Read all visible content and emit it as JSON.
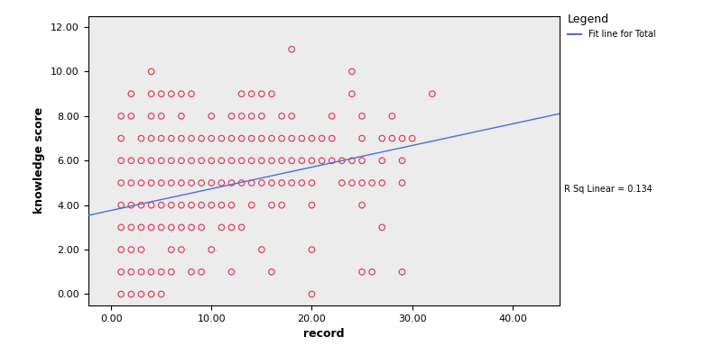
{
  "chart_data": {
    "type": "scatter",
    "x_label": "record",
    "y_label": "knowledge score",
    "legend_title": "Legend",
    "legend": "upper left",
    "annotations": [
      {
        "text": "R Sq Linear = 0.134"
      }
    ],
    "xlim": [
      -2.3,
      44.7
    ],
    "ylim": [
      -0.5,
      12.5
    ],
    "xticks": [
      {
        "value": 0,
        "label": "0.00"
      },
      {
        "value": 10,
        "label": "10.00"
      },
      {
        "value": 20,
        "label": "20.00"
      },
      {
        "value": 30,
        "label": "30.00"
      },
      {
        "value": 40,
        "label": "40.00"
      }
    ],
    "yticks": [
      {
        "value": 0,
        "label": "0.00"
      },
      {
        "value": 2,
        "label": "2.00"
      },
      {
        "value": 4,
        "label": "4.00"
      },
      {
        "value": 6,
        "label": "6.00"
      },
      {
        "value": 8,
        "label": "8.00"
      },
      {
        "value": 10,
        "label": "10.00"
      },
      {
        "value": 12,
        "label": "12.00"
      }
    ],
    "grid": false,
    "series": [
      {
        "type": "scatter",
        "color": "#e0405a",
        "marker": "o",
        "x": [
          18,
          4,
          24,
          2,
          4,
          5,
          6,
          7,
          8,
          13,
          14,
          15,
          16,
          24,
          32,
          1,
          2,
          4,
          5,
          7,
          10,
          12,
          13,
          14,
          15,
          17,
          18,
          22,
          25,
          28,
          1,
          3,
          4,
          5,
          6,
          7,
          8,
          9,
          10,
          11,
          12,
          13,
          14,
          15,
          16,
          17,
          18,
          19,
          20,
          21,
          22,
          25,
          27,
          28,
          29,
          30,
          1,
          2,
          3,
          4,
          5,
          6,
          7,
          8,
          9,
          10,
          11,
          12,
          13,
          14,
          15,
          16,
          17,
          18,
          19,
          20,
          21,
          22,
          23,
          24,
          25,
          27,
          29,
          1,
          2,
          3,
          4,
          5,
          6,
          7,
          8,
          9,
          10,
          11,
          12,
          13,
          14,
          15,
          16,
          17,
          18,
          19,
          20,
          23,
          24,
          25,
          26,
          27,
          29,
          1,
          2,
          3,
          4,
          5,
          6,
          7,
          8,
          9,
          10,
          11,
          12,
          14,
          16,
          17,
          20,
          25,
          1,
          2,
          3,
          4,
          5,
          6,
          7,
          8,
          9,
          11,
          12,
          13,
          27,
          1,
          2,
          3,
          6,
          7,
          10,
          15,
          20,
          1,
          2,
          3,
          4,
          5,
          6,
          8,
          9,
          12,
          16,
          25,
          26,
          29,
          1,
          2,
          3,
          4,
          5,
          20
        ],
        "values": [
          11,
          10,
          10,
          9,
          9,
          9,
          9,
          9,
          9,
          9,
          9,
          9,
          9,
          9,
          9,
          8,
          8,
          8,
          8,
          8,
          8,
          8,
          8,
          8,
          8,
          8,
          8,
          8,
          8,
          8,
          7,
          7,
          7,
          7,
          7,
          7,
          7,
          7,
          7,
          7,
          7,
          7,
          7,
          7,
          7,
          7,
          7,
          7,
          7,
          7,
          7,
          7,
          7,
          7,
          7,
          7,
          6,
          6,
          6,
          6,
          6,
          6,
          6,
          6,
          6,
          6,
          6,
          6,
          6,
          6,
          6,
          6,
          6,
          6,
          6,
          6,
          6,
          6,
          6,
          6,
          6,
          6,
          6,
          5,
          5,
          5,
          5,
          5,
          5,
          5,
          5,
          5,
          5,
          5,
          5,
          5,
          5,
          5,
          5,
          5,
          5,
          5,
          5,
          5,
          5,
          5,
          5,
          5,
          5,
          4,
          4,
          4,
          4,
          4,
          4,
          4,
          4,
          4,
          4,
          4,
          4,
          4,
          4,
          4,
          4,
          4,
          3,
          3,
          3,
          3,
          3,
          3,
          3,
          3,
          3,
          3,
          3,
          3,
          3,
          2,
          2,
          2,
          2,
          2,
          2,
          2,
          2,
          1,
          1,
          1,
          1,
          1,
          1,
          1,
          1,
          1,
          1,
          1,
          1,
          1,
          0,
          0,
          0,
          0,
          0,
          0
        ]
      },
      {
        "type": "line",
        "name": "Fit line for Total",
        "color": "#4a6fd0",
        "line_style": "solid",
        "x": [
          -2.3,
          44.7
        ],
        "values": [
          3.54,
          8.11
        ]
      }
    ]
  }
}
